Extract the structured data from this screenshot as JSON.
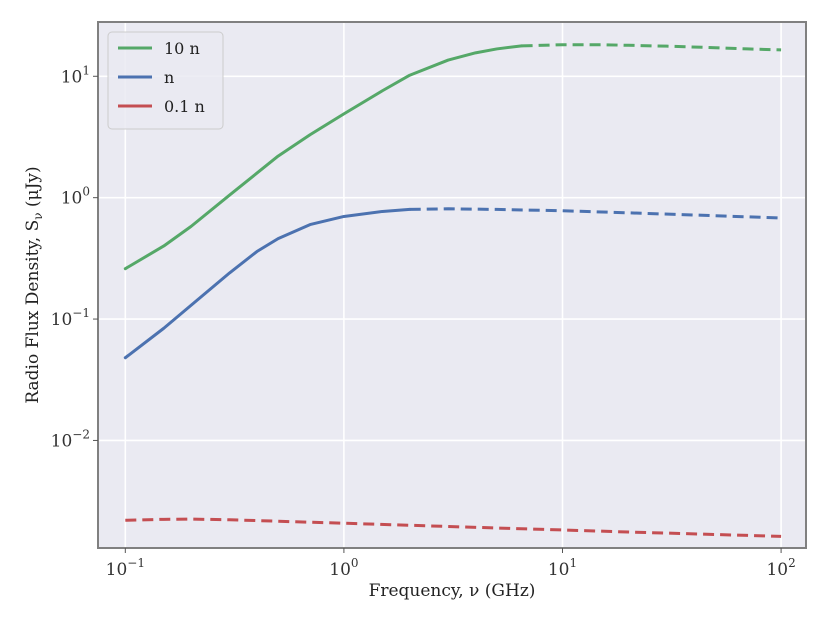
{
  "chart_data": {
    "type": "line",
    "xlabel": "Frequency, ν (GHz)",
    "ylabel": "Radio Flux Density, S_ν (μJy)",
    "ylabel_base": "Radio Flux Density, S",
    "ylabel_sub": "ν",
    "ylabel_tail": " (μJy)",
    "xscale": "log",
    "yscale": "log",
    "xlim": [
      0.075,
      130
    ],
    "ylim": [
      0.0013,
      28
    ],
    "grid": true,
    "legend_position": "top-left",
    "x_ticks": [
      {
        "value": 0.1,
        "base": "10",
        "exp": "−1"
      },
      {
        "value": 1,
        "base": "10",
        "exp": "0"
      },
      {
        "value": 10,
        "base": "10",
        "exp": "1"
      },
      {
        "value": 100,
        "base": "10",
        "exp": "2"
      }
    ],
    "y_ticks": [
      {
        "value": 0.01,
        "base": "10",
        "exp": "−2"
      },
      {
        "value": 0.1,
        "base": "10",
        "exp": "−1"
      },
      {
        "value": 1,
        "base": "10",
        "exp": "0"
      },
      {
        "value": 10,
        "base": "10",
        "exp": "1"
      }
    ],
    "series": [
      {
        "name": "10 n",
        "color": "#55a868",
        "solid": {
          "x": [
            0.1,
            0.15,
            0.2,
            0.3,
            0.5,
            0.7,
            1.0,
            1.5,
            2,
            3,
            4,
            5,
            6.5
          ],
          "y": [
            0.26,
            0.4,
            0.58,
            1.05,
            2.2,
            3.3,
            4.9,
            7.6,
            10.2,
            13.6,
            15.6,
            16.8,
            17.8
          ]
        },
        "dashed": {
          "x": [
            6.5,
            10,
            15,
            20,
            30,
            50,
            70,
            100
          ],
          "y": [
            17.8,
            18.2,
            18.2,
            18.0,
            17.7,
            17.2,
            16.8,
            16.5
          ]
        }
      },
      {
        "name": "n",
        "color": "#4c72b0",
        "solid": {
          "x": [
            0.1,
            0.15,
            0.2,
            0.3,
            0.4,
            0.5,
            0.7,
            1.0,
            1.5,
            2
          ],
          "y": [
            0.048,
            0.084,
            0.13,
            0.24,
            0.36,
            0.46,
            0.6,
            0.7,
            0.77,
            0.8
          ]
        },
        "dashed": {
          "x": [
            2,
            3,
            5,
            10,
            20,
            50,
            100
          ],
          "y": [
            0.8,
            0.81,
            0.8,
            0.78,
            0.75,
            0.71,
            0.68
          ]
        }
      },
      {
        "name": "0.1 n",
        "color": "#c44e52",
        "solid": {
          "x": [],
          "y": []
        },
        "dashed": {
          "x": [
            0.1,
            0.15,
            0.2,
            0.3,
            0.5,
            1.0,
            2,
            5,
            10,
            20,
            50,
            100
          ],
          "y": [
            0.0022,
            0.00224,
            0.00225,
            0.00222,
            0.00216,
            0.00208,
            0.002,
            0.0019,
            0.00183,
            0.00176,
            0.00168,
            0.00162
          ]
        }
      }
    ]
  }
}
